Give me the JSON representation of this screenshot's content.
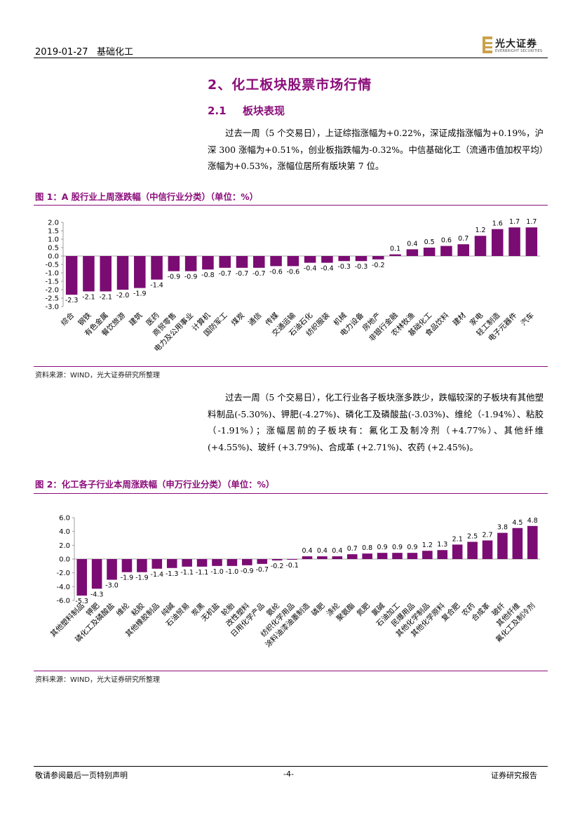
{
  "header": {
    "date": "2019-01-27",
    "category": "基础化工",
    "logo_cn": "光大证券",
    "logo_en": "EVERBRIGHT SECURITIES"
  },
  "section": {
    "title": "2、化工板块股票市场行情",
    "sub_num": "2.1",
    "sub_title": "板块表现"
  },
  "para1": "过去一周（5 个交易日），上证综指涨幅为+0.22%，深证成指涨幅为+0.19%，沪深 300 涨幅为+0.51%，创业板指跌幅为-0.32%。中信基础化工（流通市值加权平均）涨幅为+0.53%，涨幅位居所有版块第 7 位。",
  "fig1": {
    "title": "图 1：A 股行业上周涨跌幅（中信行业分类）（单位：%）",
    "source": "资料来源：WIND，光大证券研究所整理"
  },
  "para2": "过去一周（5 个交易日），化工行业各子板块涨多跌少，跌幅较深的子板块有其他塑料制品(-5.30%)、钾肥(-4.27%)、磷化工及磷酸盐(-3.03%)、维纶（-1.94%）、粘胶（-1.91%）；涨幅居前的子板块有：氟化工及制冷剂（+4.77%）、其他纤维 (+4.55%)、玻纤 (+3.79%)、合成革 (+2.71%)、农药 (+2.45%)。",
  "fig2": {
    "title": "图 2：化工各子行业本周涨跌幅（申万行业分类）（单位：%）",
    "source": "资料来源：WIND，光大证券研究所整理"
  },
  "footer": {
    "left": "敬请参阅最后一页特别声明",
    "page": "-4-",
    "right": "证券研究报告"
  },
  "colors": {
    "accent": "#8B0D7A",
    "bar": "#7B0C73"
  },
  "chart_data": [
    {
      "type": "bar",
      "title": "图 1：A 股行业上周涨跌幅（中信行业分类）（单位：%）",
      "categories": [
        "综合",
        "钢铁",
        "有色金属",
        "餐饮旅游",
        "建筑",
        "医药",
        "商贸零售",
        "电力及公用事业",
        "计算机",
        "国防军工",
        "煤炭",
        "通信",
        "传媒",
        "交通运输",
        "石油石化",
        "纺织服装",
        "机械",
        "电力设备",
        "房地产",
        "非银行金融",
        "农林牧渔",
        "基础化工",
        "食品饮料",
        "建材",
        "家电",
        "轻工制造",
        "电子元器件",
        "汽车"
      ],
      "values": [
        -2.3,
        -2.1,
        -2.1,
        -2.0,
        -1.9,
        -1.4,
        -0.9,
        -0.9,
        -0.8,
        -0.7,
        -0.7,
        -0.7,
        -0.6,
        -0.6,
        -0.4,
        -0.4,
        -0.3,
        -0.3,
        -0.2,
        0.1,
        0.4,
        0.5,
        0.6,
        0.7,
        1.2,
        1.6,
        1.7,
        1.7
      ],
      "ylim": [
        -3.0,
        2.0
      ],
      "yticks": [
        "2.0",
        "1.5",
        "1.0",
        "0.5",
        "0.0",
        "-0.5",
        "-1.0",
        "-1.5",
        "-2.0",
        "-2.5",
        "-3.0"
      ],
      "xlabel": "",
      "ylabel": ""
    },
    {
      "type": "bar",
      "title": "图 2：化工各子行业本周涨跌幅（申万行业分类）（单位：%）",
      "categories": [
        "其他塑料制品",
        "钾肥",
        "磷化工及磷酸盐",
        "维纶",
        "粘胶",
        "其他橡胶制品",
        "纯碱",
        "石油贸易",
        "炭黑",
        "无机盐",
        "轮胎",
        "改性塑料",
        "日用化学产品",
        "氨纶",
        "纺织化学用品",
        "涂料油漆油墨制造",
        "磷肥",
        "涤纶",
        "聚氨酯",
        "氮肥",
        "氯碱",
        "石油加工",
        "民爆用品",
        "其他化学制品",
        "其他化学原料",
        "复合肥",
        "农药",
        "合成革",
        "玻纤",
        "其他纤维",
        "氟化工及制冷剂"
      ],
      "values": [
        -5.3,
        -4.3,
        -3.0,
        -1.9,
        -1.9,
        -1.4,
        -1.3,
        -1.1,
        -1.1,
        -1.0,
        -1.0,
        -0.9,
        -0.7,
        -0.2,
        -0.1,
        0.4,
        0.4,
        0.4,
        0.7,
        0.8,
        0.9,
        0.9,
        0.9,
        1.2,
        1.3,
        2.1,
        2.5,
        2.7,
        3.8,
        4.5,
        4.8
      ],
      "ylim": [
        -6.0,
        6.0
      ],
      "yticks": [
        "6.0",
        "4.0",
        "2.0",
        "0.0",
        "-2.0",
        "-4.0",
        "-6.0"
      ],
      "xlabel": "",
      "ylabel": ""
    }
  ]
}
